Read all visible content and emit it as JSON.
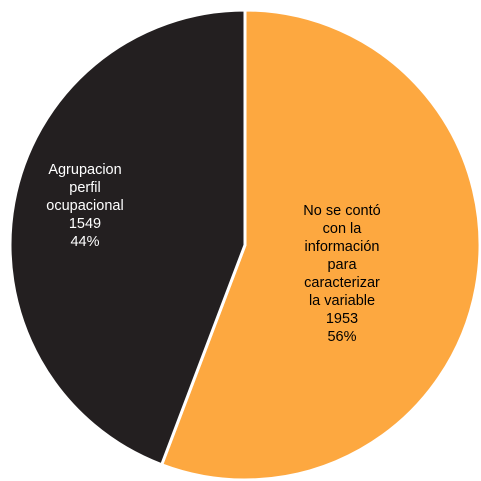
{
  "chart_data": {
    "type": "pie",
    "slices": [
      {
        "label_lines": [
          "No se contó",
          "con la",
          "información",
          "para",
          "caracterizar",
          "la variable"
        ],
        "value": 1953,
        "percent": "56%",
        "color": "#FDA840",
        "text_color": "#000000"
      },
      {
        "label_lines": [
          "Agrupacion",
          "perfil",
          "ocupacional"
        ],
        "value": 1549,
        "percent": "44%",
        "color": "#231F20",
        "text_color": "#ffffff"
      }
    ],
    "start": "12 o'clock",
    "direction": "clockwise",
    "legend": "none",
    "border_color": "#ffffff"
  }
}
